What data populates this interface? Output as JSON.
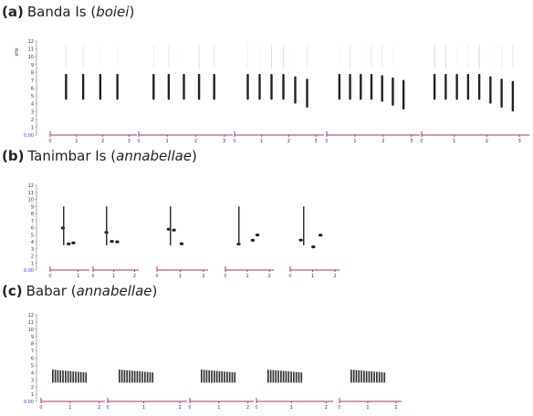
{
  "panels": [
    {
      "label": "(a)",
      "name": "Banda Is (",
      "taxon": "boiei",
      "suffix": ")",
      "ylabel": "kHz",
      "yticks": [
        {
          "value": 0,
          "label": "0.00"
        },
        1,
        2,
        3,
        4,
        5,
        6,
        7,
        8,
        9,
        10,
        11,
        12
      ],
      "ylim": [
        0,
        12
      ],
      "segments": [
        {
          "xticks": [
            0,
            1,
            2,
            3
          ],
          "xlim": [
            0,
            3.3
          ]
        },
        {
          "xticks": [
            0,
            1,
            2,
            3
          ],
          "xlim": [
            0,
            3.3
          ]
        },
        {
          "xticks": [
            0,
            1,
            2,
            3
          ],
          "xlim": [
            0,
            3.3
          ]
        },
        {
          "xticks": [
            0,
            1,
            2,
            3
          ],
          "xlim": [
            0,
            3.3
          ]
        },
        {
          "xticks": [
            0,
            1,
            2,
            3
          ],
          "xlim": [
            0,
            3.3
          ]
        }
      ]
    },
    {
      "label": "(b)",
      "name": "Tanimbar Is (",
      "taxon": "annabellae",
      "suffix": ")",
      "yticks": [
        {
          "value": 0,
          "label": "0.00"
        },
        1,
        2,
        3,
        4,
        5,
        6,
        7,
        8,
        9,
        10,
        11,
        12
      ],
      "ylim": [
        0,
        12
      ],
      "segments": [
        {
          "xticks": [
            0,
            1
          ],
          "xlim": [
            0,
            1.4
          ]
        },
        {
          "xticks": [
            0,
            1,
            2
          ],
          "xlim": [
            0,
            2.2
          ]
        },
        {
          "xticks": [
            0,
            1,
            2
          ],
          "xlim": [
            0,
            2.2
          ]
        },
        {
          "xticks": [
            0,
            1,
            2
          ],
          "xlim": [
            0,
            2.2
          ]
        },
        {
          "xticks": [
            0,
            1,
            2
          ],
          "xlim": [
            0,
            2.2
          ]
        }
      ]
    },
    {
      "label": "(c)",
      "name": "Babar (",
      "taxon": "annabellae",
      "suffix": ")",
      "yticks": [
        {
          "value": 0,
          "label": "0.00"
        },
        1,
        2,
        3,
        4,
        5,
        6,
        7,
        8,
        9,
        10,
        11,
        12
      ],
      "ylim": [
        0,
        12
      ],
      "segments": [
        {
          "xticks": [
            0,
            1,
            2
          ],
          "xlim": [
            0,
            2.2
          ]
        },
        {
          "xticks": [
            0,
            1,
            2
          ],
          "xlim": [
            0,
            2.2
          ]
        },
        {
          "xticks": [
            0,
            1,
            2
          ],
          "xlim": [
            0,
            2.2
          ]
        },
        {
          "xticks": [
            0,
            1,
            2
          ],
          "xlim": [
            0,
            2.2
          ]
        },
        {
          "xticks": [
            0,
            1,
            2
          ],
          "xlim": [
            0,
            2.2
          ]
        }
      ]
    }
  ]
}
